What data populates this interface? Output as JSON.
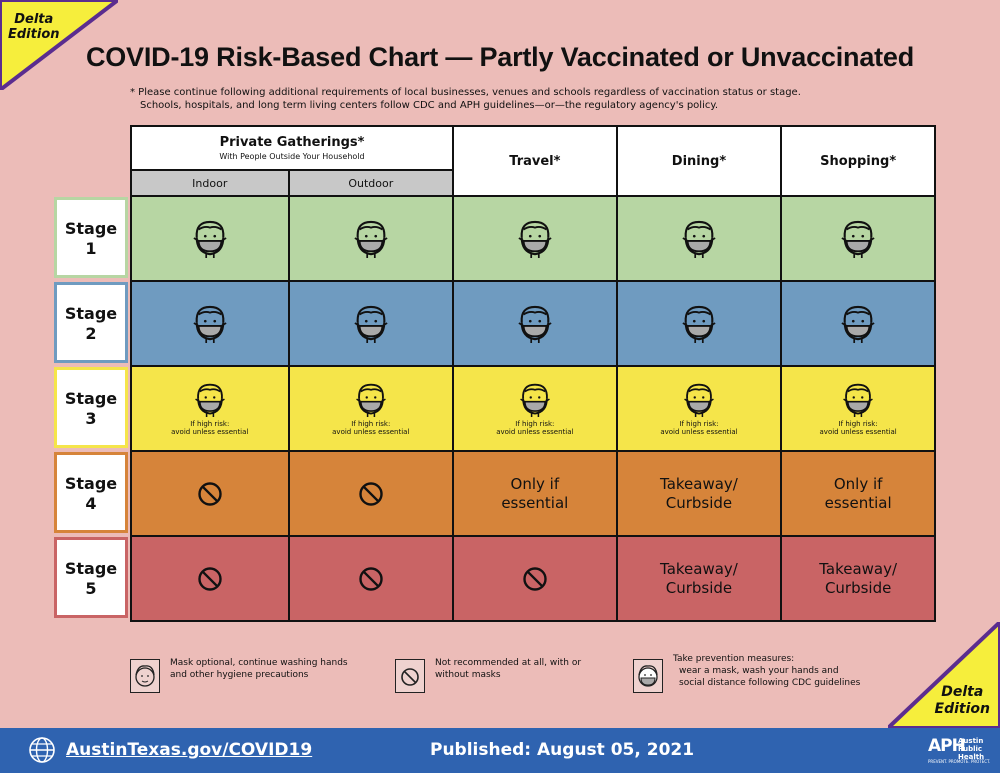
{
  "badge": {
    "line1": "Delta",
    "line2": "Edition"
  },
  "title": "COVID-19 Risk-Based Chart — Partly Vaccinated or Unvaccinated",
  "notes": {
    "line1": "* Please continue following additional requirements of local businesses, venues and schools regardless of vaccination status or stage.",
    "line2": "Schools, hospitals, and long term living centers follow CDC and APH guidelines—or—the regulatory agency's policy."
  },
  "headers": {
    "private": "Private Gatherings*",
    "private_sub": "With People Outside Your Household",
    "indoor": "Indoor",
    "outdoor": "Outdoor",
    "travel": "Travel*",
    "dining": "Dining*",
    "shopping": "Shopping*"
  },
  "stages": [
    {
      "word": "Stage",
      "num": "1",
      "color": "#b7d6a3"
    },
    {
      "word": "Stage",
      "num": "2",
      "color": "#6f9bc0"
    },
    {
      "word": "Stage",
      "num": "3",
      "color": "#f5e54a"
    },
    {
      "word": "Stage",
      "num": "4",
      "color": "#d6843a"
    },
    {
      "word": "Stage",
      "num": "5",
      "color": "#c96465"
    }
  ],
  "risk_note": {
    "line1": "If high risk:",
    "line2": "avoid unless essential"
  },
  "texts": {
    "only_if_1": "Only if",
    "only_if_2": "essential",
    "takeaway_1": "Takeaway/",
    "takeaway_2": "Curbside"
  },
  "legend": {
    "optional_1": "Mask optional, continue washing hands",
    "optional_2": "and other hygiene precautions",
    "notrec_1": "Not recommended at all, with or",
    "notrec_2": "without masks",
    "prevent_title": "Take prevention measures:",
    "prevent_1": "wear a mask, wash your hands and",
    "prevent_2": "social distance following CDC guidelines"
  },
  "footer": {
    "url": "AustinTexas.gov/COVID19",
    "published": "Published: August 05, 2021",
    "aph_mark": "APH",
    "aph_1": "Austin",
    "aph_2": "Public",
    "aph_3": "Health",
    "aph_tag": "PREVENT. PROMOTE. PROTECT."
  }
}
